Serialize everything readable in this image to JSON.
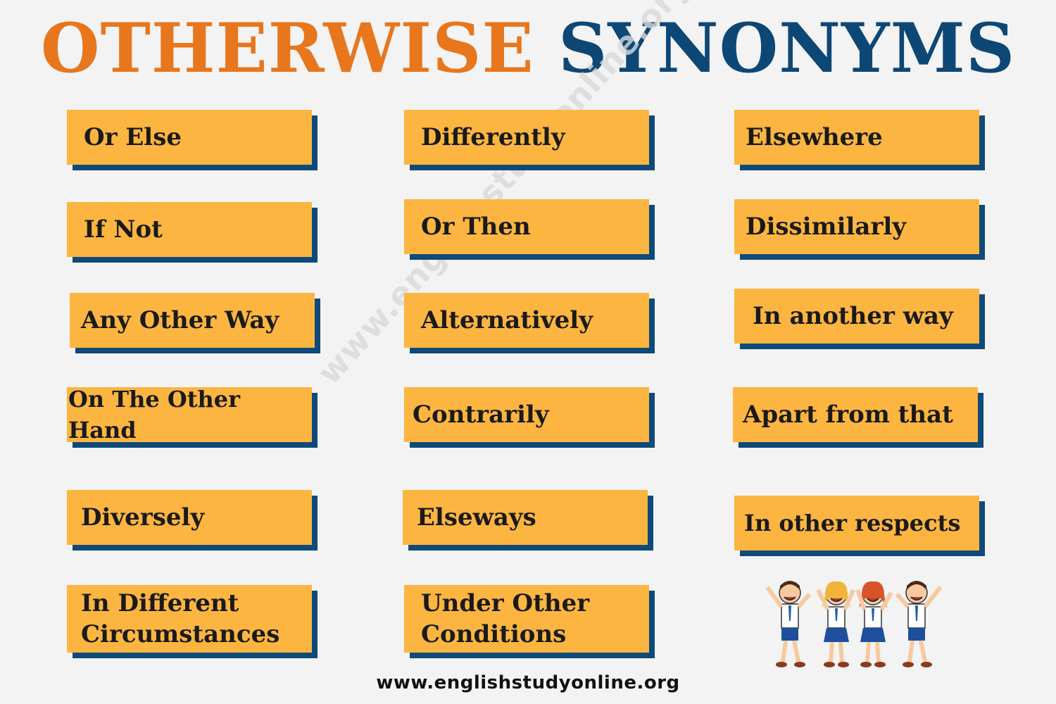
{
  "title": {
    "word1": "OTHERWISE",
    "word2": "SYNONYMS"
  },
  "colors": {
    "accent_orange": "#e8761c",
    "accent_blue": "#0d4776",
    "card": "#fbb540",
    "card_shadow": "#0e4a7a"
  },
  "synonyms": [
    "Or Else",
    "Differently",
    "Elsewhere",
    "If Not",
    "Or Then",
    "Dissimilarly",
    "Any Other Way",
    "Alternatively",
    "In another way",
    "On The Other Hand",
    "Contrarily",
    "Apart from that",
    "Diversely",
    "Elseways",
    "In other respects",
    "In Different Circumstances",
    "Under Other Conditions"
  ],
  "watermark": "www.englishstudyonline.org",
  "footer": "www.englishstudyonline.org",
  "illustration": "cartoon-schoolchildren-icon"
}
